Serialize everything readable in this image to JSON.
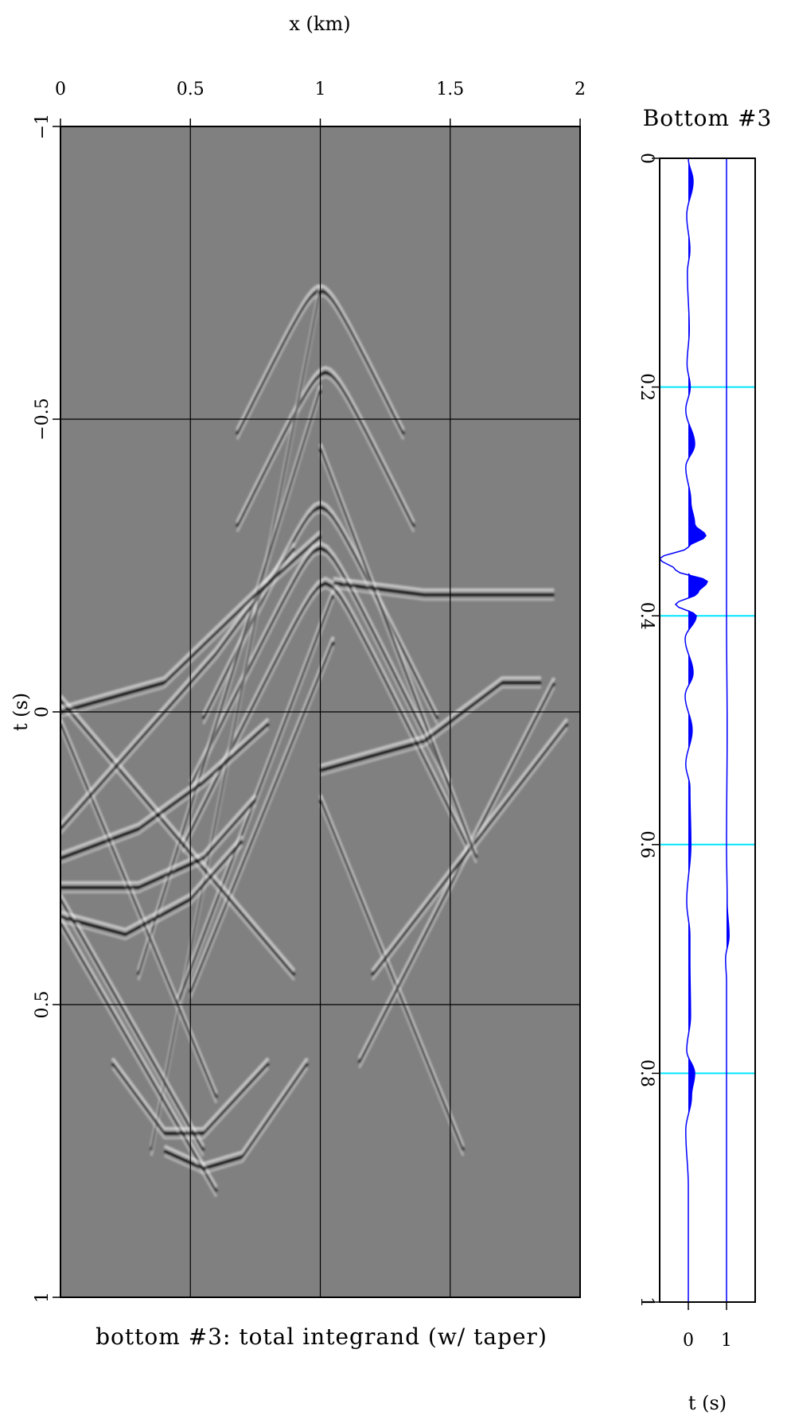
{
  "chart_data": [
    {
      "type": "heatmap",
      "title": "bottom #3: total integrand (w/ taper)",
      "xlabel": "x (km)",
      "ylabel": "t (s)",
      "xlim": [
        0,
        2
      ],
      "ylim": [
        -1,
        1
      ],
      "x_ticks": [
        "0",
        "0.5",
        "1",
        "1.5",
        "2"
      ],
      "y_ticks": [
        "−1",
        "−0.5",
        "0",
        "0.5",
        "1"
      ],
      "x_tick_values": [
        0,
        0.5,
        1,
        1.5,
        2
      ],
      "y_tick_values": [
        -1,
        -0.5,
        0,
        0.5,
        1
      ],
      "x_axis_position": "top",
      "y_axis_inverted": true,
      "grid": true,
      "colormap": "grayscale",
      "background_color": "#808080",
      "grid_color": "#000000",
      "events": [
        {
          "kind": "hyperbola",
          "apex_x": 1.0,
          "apex_t": -0.72,
          "width": 0.32
        },
        {
          "kind": "hyperbola",
          "apex_x": 1.02,
          "apex_t": -0.58,
          "width": 0.34
        },
        {
          "kind": "hyperbola",
          "apex_x": 1.0,
          "apex_t": -0.35,
          "width": 0.45
        },
        {
          "kind": "hyperbola",
          "apex_x": 1.0,
          "apex_t": -0.28,
          "width": 0.5
        },
        {
          "kind": "hyperbola",
          "apex_x": 1.02,
          "apex_t": -0.22,
          "width": 0.55
        },
        {
          "kind": "line",
          "from": [
            0.35,
            0.75
          ],
          "to": [
            1.0,
            -0.72
          ]
        },
        {
          "kind": "line",
          "from": [
            0.3,
            0.45
          ],
          "to": [
            1.0,
            -0.55
          ]
        },
        {
          "kind": "line",
          "from": [
            0.45,
            0.5
          ],
          "to": [
            1.05,
            -0.2
          ]
        },
        {
          "kind": "line",
          "from": [
            0.5,
            0.48
          ],
          "to": [
            1.05,
            -0.12
          ]
        },
        {
          "kind": "line",
          "from": [
            0.0,
            0.02
          ],
          "to": [
            0.6,
            0.66
          ]
        },
        {
          "kind": "line",
          "from": [
            0.0,
            0.32
          ],
          "to": [
            0.55,
            0.75
          ]
        },
        {
          "kind": "line",
          "from": [
            0.0,
            0.36
          ],
          "to": [
            0.6,
            0.82
          ]
        },
        {
          "kind": "line",
          "from": [
            0.0,
            -0.02
          ],
          "to": [
            0.9,
            0.45
          ]
        },
        {
          "kind": "line",
          "from": [
            1.0,
            0.15
          ],
          "to": [
            1.55,
            0.75
          ]
        },
        {
          "kind": "line",
          "from": [
            1.15,
            0.6
          ],
          "to": [
            1.9,
            -0.05
          ]
        },
        {
          "kind": "line",
          "from": [
            1.2,
            0.45
          ],
          "to": [
            1.95,
            0.02
          ]
        },
        {
          "kind": "line",
          "from": [
            1.0,
            -0.45
          ],
          "to": [
            1.6,
            0.25
          ]
        },
        {
          "kind": "curve",
          "points": [
            [
              0.0,
              0.35
            ],
            [
              0.25,
              0.38
            ],
            [
              0.5,
              0.32
            ],
            [
              0.7,
              0.22
            ]
          ]
        },
        {
          "kind": "curve",
          "points": [
            [
              0.0,
              0.3
            ],
            [
              0.3,
              0.3
            ],
            [
              0.55,
              0.25
            ],
            [
              0.75,
              0.15
            ]
          ]
        },
        {
          "kind": "curve",
          "points": [
            [
              0.0,
              0.2
            ],
            [
              0.3,
              0.05
            ],
            [
              0.6,
              -0.1
            ],
            [
              0.9,
              -0.28
            ]
          ]
        },
        {
          "kind": "curve",
          "points": [
            [
              0.0,
              0.25
            ],
            [
              0.3,
              0.2
            ],
            [
              0.55,
              0.12
            ],
            [
              0.8,
              0.02
            ]
          ]
        },
        {
          "kind": "curve",
          "points": [
            [
              0.2,
              0.6
            ],
            [
              0.4,
              0.72
            ],
            [
              0.55,
              0.72
            ],
            [
              0.8,
              0.6
            ]
          ]
        },
        {
          "kind": "curve",
          "points": [
            [
              0.4,
              0.75
            ],
            [
              0.55,
              0.78
            ],
            [
              0.7,
              0.76
            ],
            [
              0.95,
              0.6
            ]
          ]
        },
        {
          "kind": "curve",
          "points": [
            [
              0.0,
              0.0
            ],
            [
              0.4,
              -0.05
            ],
            [
              0.75,
              -0.2
            ],
            [
              1.0,
              -0.3
            ]
          ]
        },
        {
          "kind": "curve",
          "points": [
            [
              1.05,
              -0.22
            ],
            [
              1.4,
              -0.2
            ],
            [
              1.7,
              -0.2
            ],
            [
              1.9,
              -0.2
            ]
          ]
        },
        {
          "kind": "curve",
          "points": [
            [
              1.0,
              0.1
            ],
            [
              1.4,
              0.05
            ],
            [
              1.7,
              -0.05
            ],
            [
              1.85,
              -0.05
            ]
          ]
        }
      ]
    },
    {
      "type": "line",
      "title": "Bottom #3",
      "xlabel": "t (s)",
      "ylabel": "",
      "orientation": "vertical-traces",
      "trace_ticks": [
        "0",
        "1"
      ],
      "trace_positions": [
        0,
        1
      ],
      "t_ticks": [
        "0",
        "0.2",
        "0.4",
        "0.6",
        "0.8",
        "1"
      ],
      "tlim": [
        0,
        1
      ],
      "trace_color": "#0000ff",
      "fill_positive": true,
      "marker_lines_t": [
        0.2,
        0.4,
        0.6,
        0.8
      ],
      "marker_color": "#00e5ff",
      "series": [
        {
          "t": [
            0.0,
            0.02,
            0.05,
            0.08,
            0.1,
            0.15,
            0.18,
            0.2,
            0.22,
            0.25,
            0.27,
            0.3,
            0.32,
            0.33,
            0.34,
            0.35,
            0.36,
            0.37,
            0.38,
            0.39,
            0.4,
            0.42,
            0.45,
            0.47,
            0.5,
            0.53,
            0.55,
            0.6,
            0.65,
            0.68,
            0.7,
            0.75,
            0.78,
            0.8,
            0.82,
            0.85,
            0.9,
            1.0
          ],
          "values": [
            0.0,
            0.15,
            -0.05,
            0.05,
            -0.03,
            0.03,
            -0.04,
            0.06,
            -0.08,
            0.2,
            -0.08,
            0.08,
            0.2,
            0.55,
            0.0,
            -0.9,
            -0.4,
            0.6,
            0.3,
            -0.4,
            0.25,
            -0.1,
            0.15,
            -0.1,
            0.12,
            -0.08,
            0.05,
            0.08,
            -0.05,
            0.05,
            0.05,
            0.07,
            -0.05,
            0.2,
            0.1,
            -0.08,
            0.0,
            0.0
          ]
        },
        {
          "t": [
            0.0,
            0.1,
            0.2,
            0.3,
            0.4,
            0.5,
            0.6,
            0.65,
            0.68,
            0.7,
            0.72,
            0.8,
            0.9,
            1.0
          ],
          "values": [
            0.0,
            0.0,
            0.0,
            0.0,
            0.0,
            0.02,
            0.0,
            0.02,
            0.08,
            -0.03,
            0.0,
            0.0,
            0.0,
            0.0
          ]
        }
      ]
    }
  ]
}
